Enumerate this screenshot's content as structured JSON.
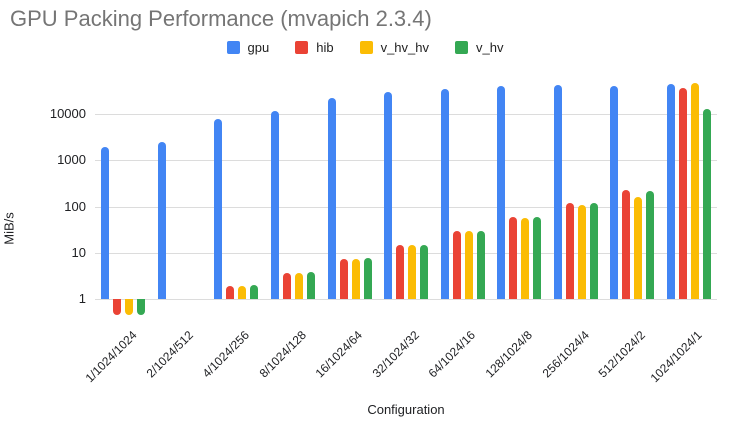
{
  "title": "GPU Packing Performance (mvapich 2.3.4)",
  "chart_data": {
    "type": "bar",
    "title": "GPU Packing Performance (mvapich 2.3.4)",
    "xlabel": "Configuration",
    "ylabel": "MiB/s",
    "y_scale": "log",
    "y_ticks": [
      1,
      10,
      100,
      1000,
      10000
    ],
    "ylim": [
      0.45,
      70000
    ],
    "grid": true,
    "legend_position": "top",
    "categories": [
      "1/1024/1024",
      "2/1024/512",
      "4/1024/256",
      "8/1024/128",
      "16/1024/64",
      "32/1024/32",
      "64/1024/16",
      "128/1024/8",
      "256/1024/4",
      "512/1024/2",
      "1024/1024/1"
    ],
    "series": [
      {
        "name": "gpu",
        "color": "#4285F4",
        "values": [
          2000,
          2500,
          7800,
          12000,
          22000,
          31000,
          36000,
          40000,
          42000,
          40000,
          46000
        ]
      },
      {
        "name": "hib",
        "color": "#EA4335",
        "values": [
          0.45,
          1.0,
          1.9,
          3.7,
          7.5,
          15,
          30,
          60,
          118,
          230,
          37000
        ]
      },
      {
        "name": "v_hv_hv",
        "color": "#FBBC04",
        "values": [
          0.45,
          1.0,
          1.9,
          3.7,
          7.4,
          15,
          29,
          57,
          108,
          160,
          48000
        ]
      },
      {
        "name": "v_hv",
        "color": "#34A853",
        "values": [
          0.45,
          1.0,
          2.0,
          3.8,
          7.6,
          15,
          30,
          60,
          118,
          215,
          13000
        ]
      }
    ]
  },
  "colors": {
    "title_text": "#757575",
    "axis_text": "#202124",
    "gridline": "#dcdcdc"
  }
}
